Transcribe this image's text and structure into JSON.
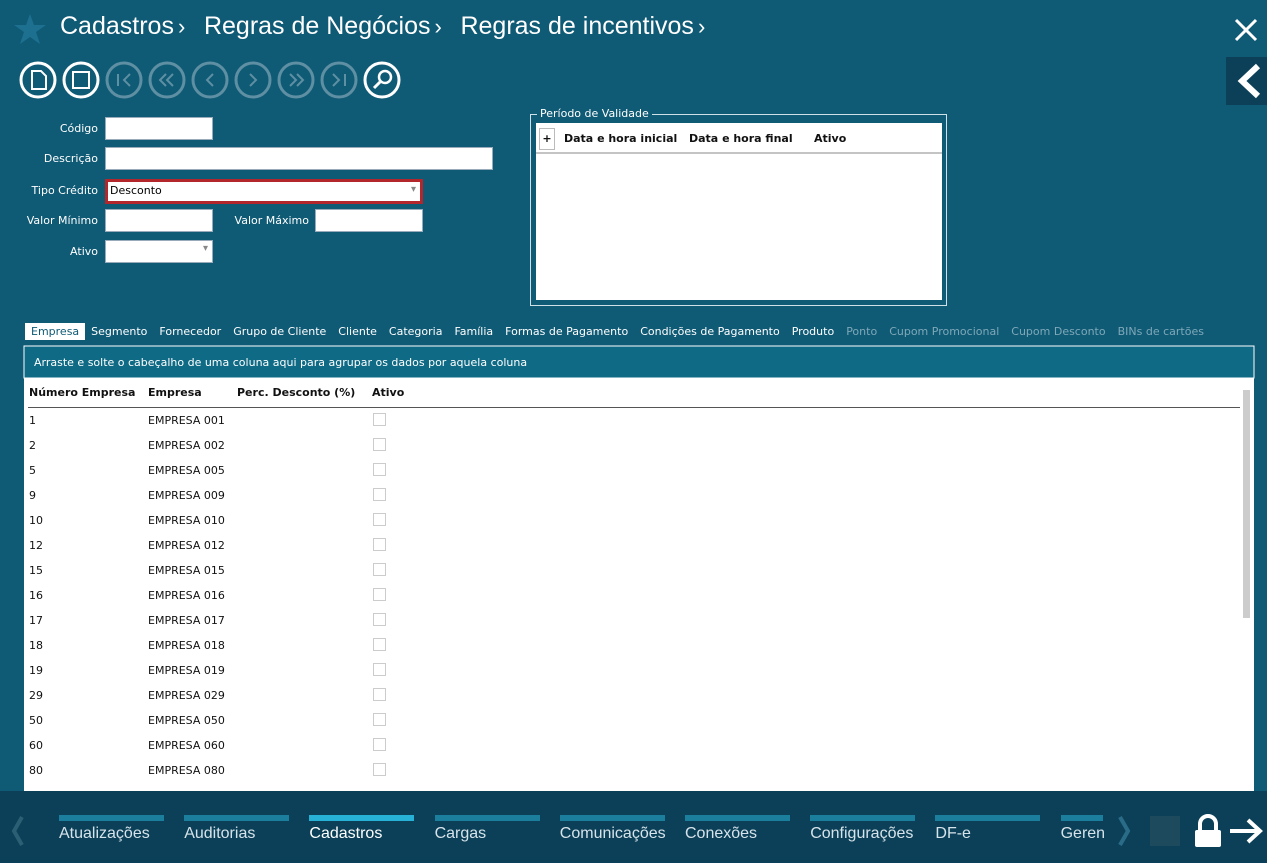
{
  "breadcrumb": [
    "Cadastros",
    "Regras de Negócios",
    "Regras de incentivos"
  ],
  "form": {
    "fields": [
      {
        "label": "Código"
      },
      {
        "label": "Descrição"
      },
      {
        "label": "Tipo Crédito",
        "value": "Desconto"
      },
      {
        "label": "Valor Mínimo"
      },
      {
        "label": "Valor Máximo"
      },
      {
        "label": "Ativo"
      }
    ]
  },
  "validity": {
    "title": "Período de Validade",
    "add_button": "+",
    "columns": [
      "Data e hora inicial",
      "Data e hora final",
      "Ativo"
    ]
  },
  "tabs": [
    {
      "label": "Empresa",
      "state": "active"
    },
    {
      "label": "Segmento",
      "state": "enabled"
    },
    {
      "label": "Fornecedor",
      "state": "enabled"
    },
    {
      "label": "Grupo de Cliente",
      "state": "enabled"
    },
    {
      "label": "Cliente",
      "state": "enabled"
    },
    {
      "label": "Categoria",
      "state": "enabled"
    },
    {
      "label": "Família",
      "state": "enabled"
    },
    {
      "label": "Formas de Pagamento",
      "state": "enabled"
    },
    {
      "label": "Condições de Pagamento",
      "state": "enabled"
    },
    {
      "label": "Produto",
      "state": "enabled"
    },
    {
      "label": "Ponto",
      "state": "disabled"
    },
    {
      "label": "Cupom Promocional",
      "state": "disabled"
    },
    {
      "label": "Cupom Desconto",
      "state": "disabled"
    },
    {
      "label": "BINs de cartões",
      "state": "disabled"
    }
  ],
  "grid": {
    "group_hint": "Arraste e solte o cabeçalho de uma coluna aqui para agrupar os dados por aquela coluna",
    "columns": [
      "Número Empresa",
      "Empresa",
      "Perc. Desconto (%)",
      "Ativo"
    ],
    "rows": [
      {
        "numero": 1,
        "empresa": "EMPRESA 001",
        "ativo": false
      },
      {
        "numero": 2,
        "empresa": "EMPRESA 002",
        "ativo": false
      },
      {
        "numero": 5,
        "empresa": "EMPRESA 005",
        "ativo": false
      },
      {
        "numero": 9,
        "empresa": "EMPRESA 009",
        "ativo": false
      },
      {
        "numero": 10,
        "empresa": "EMPRESA 010",
        "ativo": false
      },
      {
        "numero": 12,
        "empresa": "EMPRESA 012",
        "ativo": false
      },
      {
        "numero": 15,
        "empresa": "EMPRESA 015",
        "ativo": false
      },
      {
        "numero": 16,
        "empresa": "EMPRESA 016",
        "ativo": false
      },
      {
        "numero": 17,
        "empresa": "EMPRESA 017",
        "ativo": false
      },
      {
        "numero": 18,
        "empresa": "EMPRESA 018",
        "ativo": false
      },
      {
        "numero": 19,
        "empresa": "EMPRESA 019",
        "ativo": false
      },
      {
        "numero": 29,
        "empresa": "EMPRESA 029",
        "ativo": false
      },
      {
        "numero": 50,
        "empresa": "EMPRESA 050",
        "ativo": false
      },
      {
        "numero": 60,
        "empresa": "EMPRESA 060",
        "ativo": false
      },
      {
        "numero": 80,
        "empresa": "EMPRESA 080",
        "ativo": false
      }
    ]
  },
  "nav": {
    "active": 2,
    "items": [
      "Atualizações",
      "Auditorias",
      "Cadastros",
      "Cargas",
      "Comunicações",
      "Conexões",
      "Configurações",
      "DF-e",
      "Geren"
    ]
  }
}
